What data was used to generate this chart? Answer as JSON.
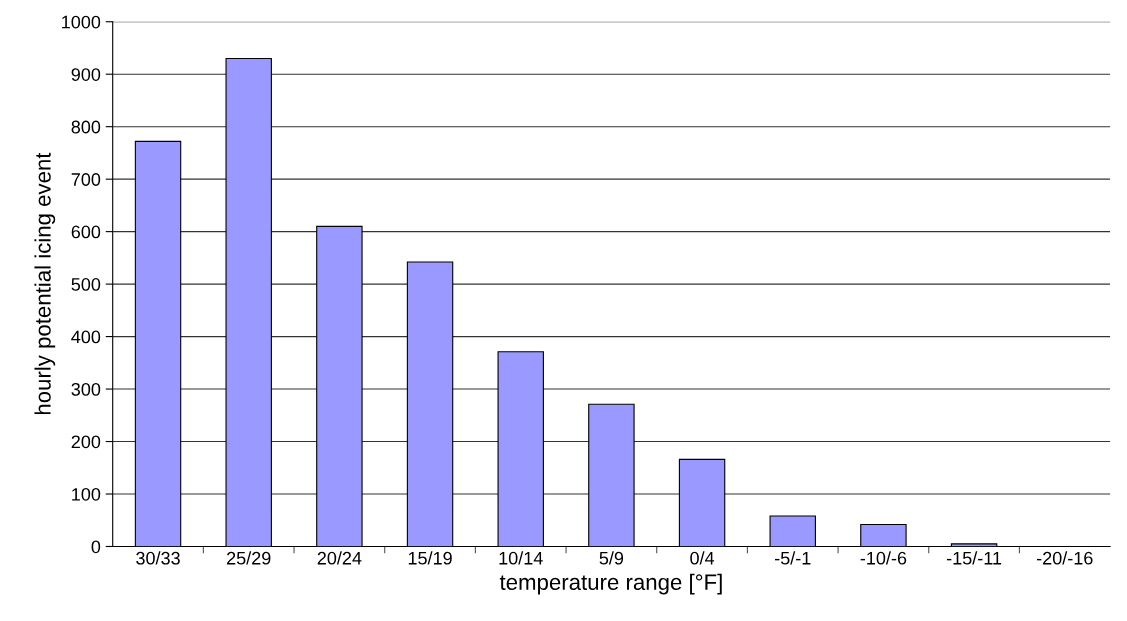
{
  "chart_data": {
    "type": "bar",
    "xlabel": "temperature range [°F]",
    "ylabel": "hourly potential icing event",
    "categories": [
      "30/33",
      "25/29",
      "20/24",
      "15/19",
      "10/14",
      "5/9",
      "0/4",
      "-5/-1",
      "-10/-6",
      "-15/-11",
      "-20/-16"
    ],
    "values": [
      772,
      930,
      610,
      542,
      371,
      271,
      166,
      58,
      42,
      5,
      0
    ],
    "color": "#9999ff",
    "ylim": [
      0,
      1000
    ],
    "yticks": [
      0,
      100,
      200,
      300,
      400,
      500,
      600,
      700,
      800,
      900,
      1000
    ],
    "grid": "y",
    "legend": false
  }
}
